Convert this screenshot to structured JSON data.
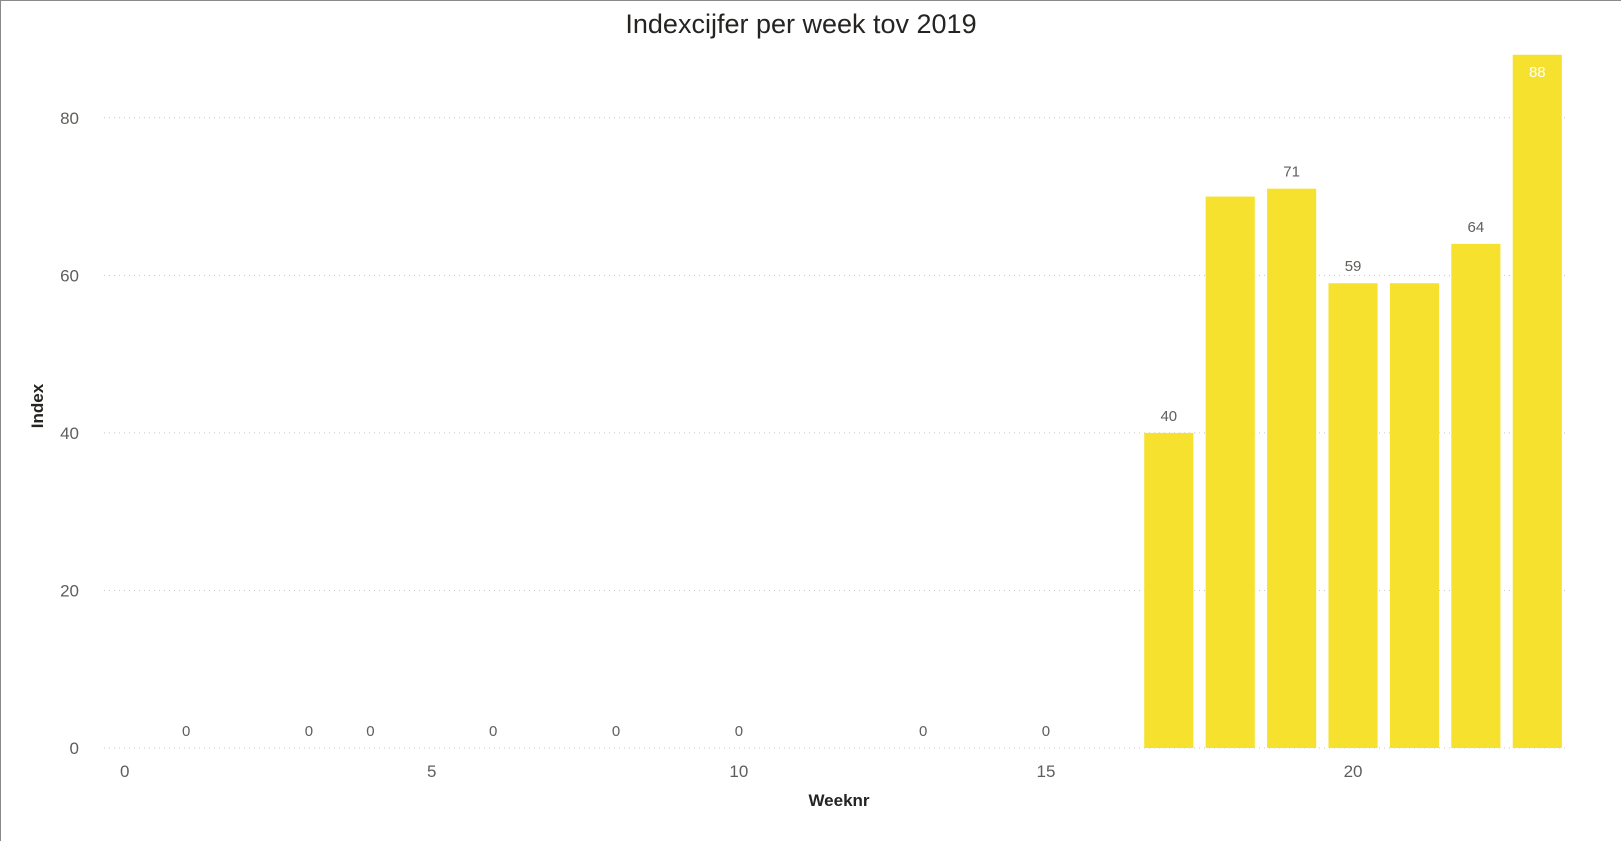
{
  "chart_data": {
    "type": "bar",
    "title": "Indexcijfer per week tov 2019",
    "xlabel": "Weeknr",
    "ylabel": "Index",
    "xlim": [
      -0.5,
      23.5
    ],
    "ylim": [
      0,
      90
    ],
    "x_ticks": [
      0,
      5,
      10,
      15,
      20
    ],
    "y_ticks": [
      0,
      20,
      40,
      60,
      80
    ],
    "grid": true,
    "color": "#F6E22E",
    "points": [
      {
        "week": 1,
        "value": 0,
        "label": "0"
      },
      {
        "week": 3,
        "value": 0,
        "label": "0"
      },
      {
        "week": 4,
        "value": 0,
        "label": "0"
      },
      {
        "week": 6,
        "value": 0,
        "label": "0"
      },
      {
        "week": 8,
        "value": 0,
        "label": "0"
      },
      {
        "week": 10,
        "value": 0,
        "label": "0"
      },
      {
        "week": 13,
        "value": 0,
        "label": "0"
      },
      {
        "week": 15,
        "value": 0,
        "label": "0"
      },
      {
        "week": 17,
        "value": 40,
        "label": "40"
      },
      {
        "week": 18,
        "value": 70,
        "label": ""
      },
      {
        "week": 19,
        "value": 71,
        "label": "71"
      },
      {
        "week": 20,
        "value": 59,
        "label": "59"
      },
      {
        "week": 21,
        "value": 59,
        "label": ""
      },
      {
        "week": 22,
        "value": 64,
        "label": "64"
      },
      {
        "week": 23,
        "value": 88,
        "label": "88"
      }
    ]
  }
}
